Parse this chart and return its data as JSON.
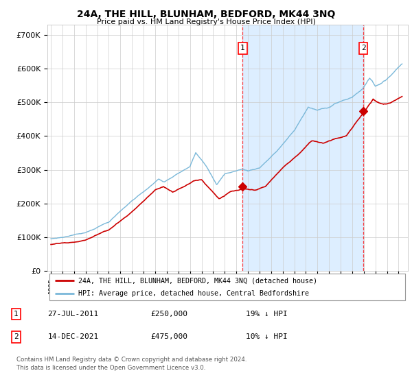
{
  "title": "24A, THE HILL, BLUNHAM, BEDFORD, MK44 3NQ",
  "subtitle": "Price paid vs. HM Land Registry's House Price Index (HPI)",
  "ylim": [
    0,
    730000
  ],
  "xlim_start": 1994.7,
  "xlim_end": 2025.8,
  "hpi_color": "#7ab8d9",
  "price_color": "#cc0000",
  "bg_color": "#ffffff",
  "shaded_color": "#ddeeff",
  "grid_color": "#cccccc",
  "purchase1_date_num": 2011.55,
  "purchase1_price": 250000,
  "purchase2_date_num": 2021.95,
  "purchase2_price": 475000,
  "legend_line1": "24A, THE HILL, BLUNHAM, BEDFORD, MK44 3NQ (detached house)",
  "legend_line2": "HPI: Average price, detached house, Central Bedfordshire",
  "table_row1": [
    "1",
    "27-JUL-2011",
    "£250,000",
    "19% ↓ HPI"
  ],
  "table_row2": [
    "2",
    "14-DEC-2021",
    "£475,000",
    "10% ↓ HPI"
  ],
  "footnote1": "Contains HM Land Registry data © Crown copyright and database right 2024.",
  "footnote2": "This data is licensed under the Open Government Licence v3.0.",
  "yticks": [
    0,
    100000,
    200000,
    300000,
    400000,
    500000,
    600000,
    700000
  ],
  "ytick_labels": [
    "£0",
    "£100K",
    "£200K",
    "£300K",
    "£400K",
    "£500K",
    "£600K",
    "£700K"
  ]
}
